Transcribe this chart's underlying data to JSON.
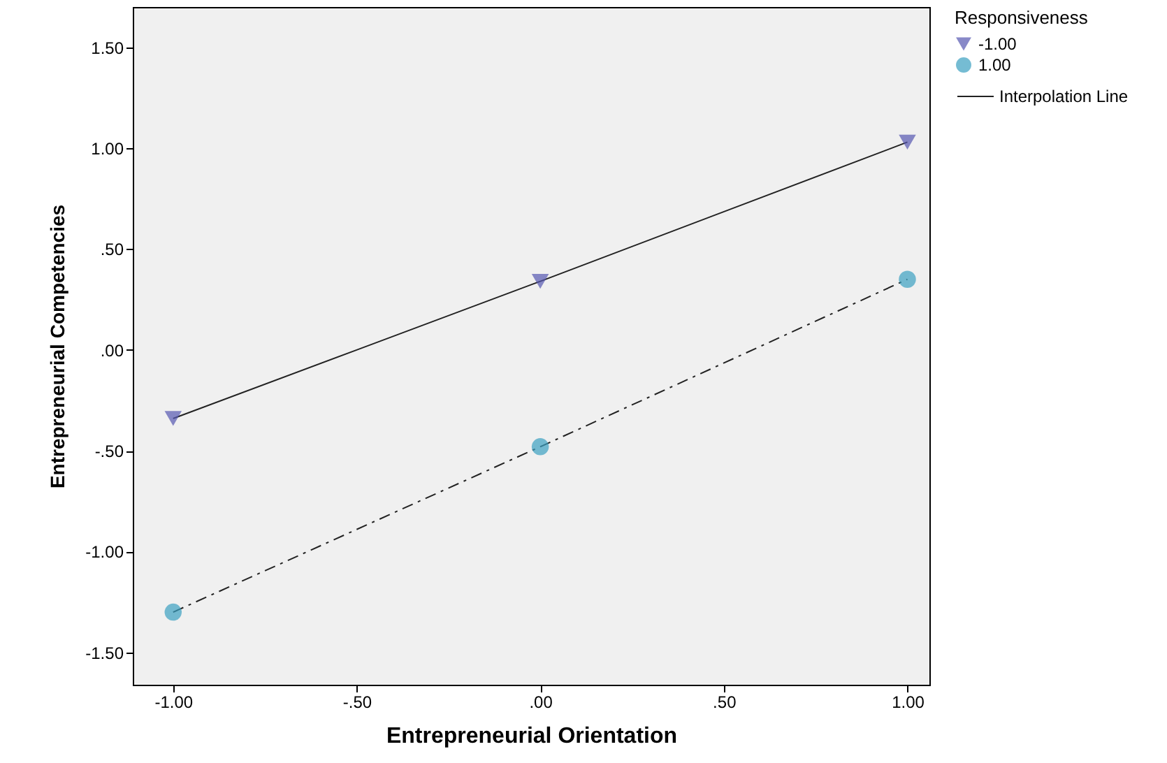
{
  "chart_data": {
    "type": "line",
    "xlabel": "Entrepreneurial Orientation",
    "ylabel": "Entrepreneurial Competencies",
    "legend_title": "Responsiveness",
    "legend": "top right",
    "grid": false,
    "x": [
      -1,
      0,
      1
    ],
    "xlim": [
      -1.11,
      1.06
    ],
    "ylim": [
      -1.66,
      1.7
    ],
    "xticks": [
      {
        "value": -1,
        "label": "-1.00"
      },
      {
        "value": -0.5,
        "label": "-.50"
      },
      {
        "value": 0,
        "label": ".00"
      },
      {
        "value": 0.5,
        "label": ".50"
      },
      {
        "value": 1,
        "label": "1.00"
      }
    ],
    "yticks": [
      {
        "value": -1.5,
        "label": "-1.50"
      },
      {
        "value": -1,
        "label": "-1.00"
      },
      {
        "value": -0.5,
        "label": "-.50"
      },
      {
        "value": 0,
        "label": ".00"
      },
      {
        "value": 0.5,
        "label": ".50"
      },
      {
        "value": 1,
        "label": "1.00"
      },
      {
        "value": 1.5,
        "label": "1.50"
      }
    ],
    "series": [
      {
        "name": "-1.00",
        "color": "#5557b0",
        "marker": "triangle",
        "line_style": "solid",
        "values": [
          -0.34,
          0.34,
          1.03
        ]
      },
      {
        "name": "1.00",
        "color": "#3a9fc0",
        "marker": "circle",
        "line_style": "dashdot",
        "values": [
          -1.3,
          -0.48,
          0.35
        ]
      }
    ],
    "annotations": [
      "Interpolation Line"
    ]
  }
}
